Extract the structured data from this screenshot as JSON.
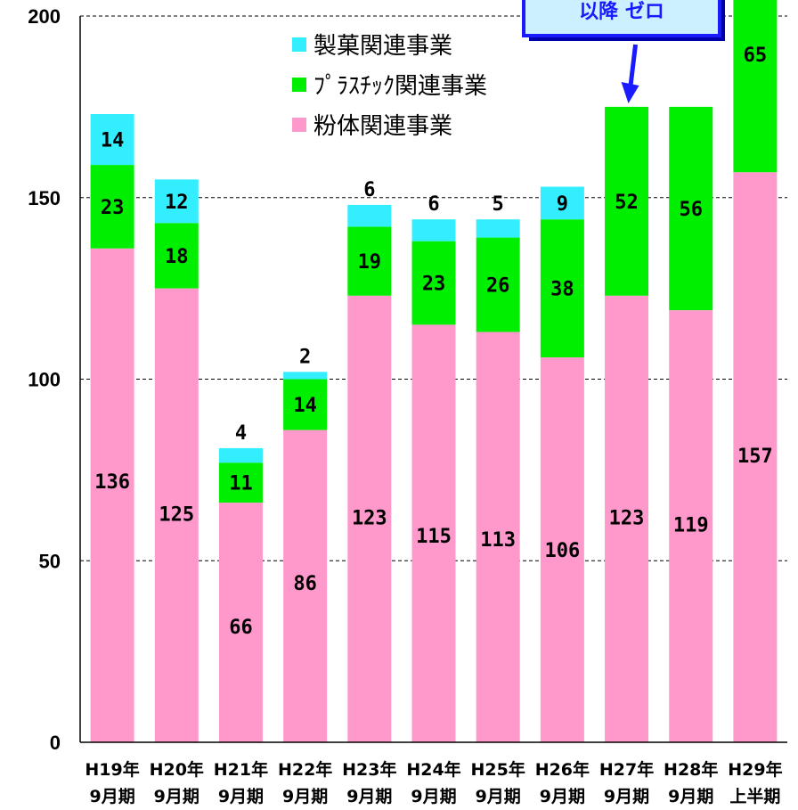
{
  "chart_data": {
    "type": "bar",
    "stacked": true,
    "categories": [
      [
        "H19年",
        "9月期"
      ],
      [
        "H20年",
        "9月期"
      ],
      [
        "H21年",
        "9月期"
      ],
      [
        "H22年",
        "9月期"
      ],
      [
        "H23年",
        "9月期"
      ],
      [
        "H24年",
        "9月期"
      ],
      [
        "H25年",
        "9月期"
      ],
      [
        "H26年",
        "9月期"
      ],
      [
        "H27年",
        "9月期"
      ],
      [
        "H28年",
        "9月期"
      ],
      [
        "H29年",
        "上半期"
      ]
    ],
    "series": [
      {
        "name": "粉体関連事業",
        "color": "#ff99cc",
        "values": [
          136,
          125,
          66,
          86,
          123,
          115,
          113,
          106,
          123,
          119,
          157
        ]
      },
      {
        "name": "プラスチック関連事業",
        "legend_label": "ﾌﾟﾗｽﾁｯｸ関連事業",
        "color": "#00ee00",
        "values": [
          23,
          18,
          11,
          14,
          19,
          23,
          26,
          38,
          52,
          56,
          65
        ]
      },
      {
        "name": "製菓関連事業",
        "color": "#33eeff",
        "values": [
          14,
          12,
          4,
          2,
          6,
          6,
          5,
          9,
          0,
          0,
          0
        ]
      }
    ],
    "legend_order": [
      2,
      1,
      0
    ],
    "legend_position": "top-left-inside",
    "ylim": [
      0,
      200
    ],
    "yticks": [
      0,
      50,
      100,
      150,
      200
    ],
    "gridlines": "dashed",
    "annotation": {
      "text": "以降 ゼロ",
      "target_category_index": 8,
      "color": "#1a1aff"
    }
  }
}
